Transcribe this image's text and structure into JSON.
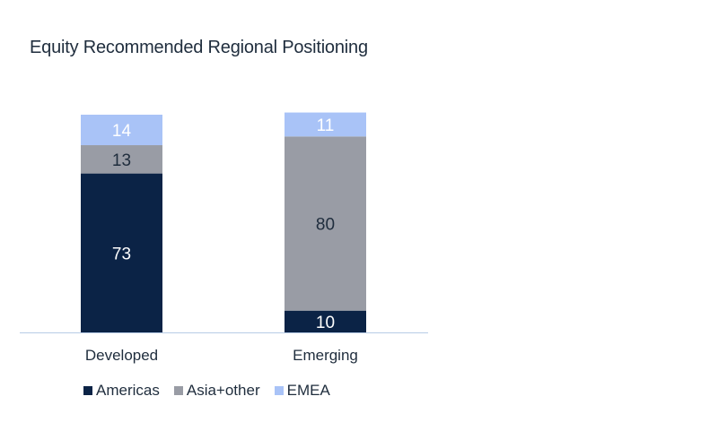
{
  "chart_data": {
    "type": "bar",
    "stacked": true,
    "title": "Equity Recommended Regional Positioning",
    "categories": [
      "Developed",
      "Emerging"
    ],
    "series": [
      {
        "name": "Americas",
        "values": [
          73,
          10
        ],
        "color": "#0b2346",
        "label_color": "#ffffff"
      },
      {
        "name": "Asia+other",
        "values": [
          13,
          80
        ],
        "color": "#999ca5",
        "label_color": "#1f2d3d"
      },
      {
        "name": "EMEA",
        "values": [
          14,
          11
        ],
        "color": "#a9c3f7",
        "label_color": "#ffffff"
      }
    ],
    "ylim": [
      0,
      100
    ],
    "xlabel": "",
    "ylabel": "",
    "legend": "bottom",
    "axis_color": "#b7cbe6"
  }
}
